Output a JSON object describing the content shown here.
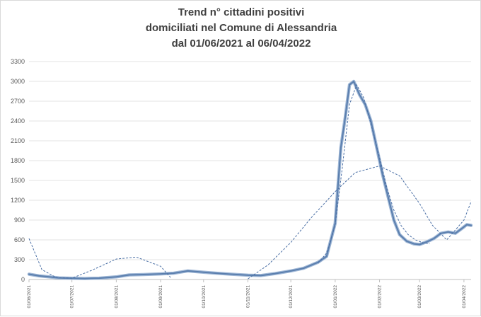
{
  "chart_data": {
    "type": "line",
    "title_lines": [
      "Trend n° cittadini positivi",
      "domiciliati nel Comune di Alessandria",
      "dal 01/06/2021 al 06/04/2022"
    ],
    "xlabel": "",
    "ylabel": "",
    "x_start": "2021-06-01",
    "x_end": "2022-04-06",
    "x_ticks": [
      "01/06/2021",
      "01/07/2021",
      "01/08/2021",
      "01/09/2021",
      "01/10/2021",
      "01/11/2021",
      "01/12/2021",
      "01/01/2022",
      "01/02/2022",
      "01/03/2022",
      "01/04/2022"
    ],
    "ylim": [
      0,
      3300
    ],
    "y_ticks": [
      0,
      300,
      600,
      900,
      1200,
      1500,
      1800,
      2100,
      2400,
      2700,
      3000,
      3300
    ],
    "grid": "horizontal",
    "legend": "none",
    "colors": {
      "series": "#5b7fae",
      "trend": "#4a6fa5",
      "grid": "#e3e3e3",
      "axis_text": "#595959"
    },
    "series": [
      {
        "style": "solid",
        "x": [
          "2021-06-01",
          "2021-06-08",
          "2021-06-15",
          "2021-06-22",
          "2021-07-01",
          "2021-07-10",
          "2021-07-20",
          "2021-08-01",
          "2021-08-10",
          "2021-08-20",
          "2021-09-01",
          "2021-09-10",
          "2021-09-20",
          "2021-10-01",
          "2021-10-10",
          "2021-10-20",
          "2021-11-01",
          "2021-11-10",
          "2021-11-20",
          "2021-12-01",
          "2021-12-10",
          "2021-12-20",
          "2021-12-26",
          "2022-01-01",
          "2022-01-05",
          "2022-01-08",
          "2022-01-11",
          "2022-01-14",
          "2022-01-18",
          "2022-01-22",
          "2022-01-26",
          "2022-01-30",
          "2022-02-03",
          "2022-02-07",
          "2022-02-11",
          "2022-02-15",
          "2022-02-20",
          "2022-02-25",
          "2022-03-01",
          "2022-03-06",
          "2022-03-11",
          "2022-03-16",
          "2022-03-21",
          "2022-03-26",
          "2022-03-31",
          "2022-04-03",
          "2022-04-06"
        ],
        "y": [
          80,
          55,
          40,
          25,
          18,
          15,
          20,
          40,
          70,
          75,
          85,
          95,
          130,
          110,
          95,
          80,
          65,
          60,
          90,
          130,
          170,
          260,
          350,
          850,
          2000,
          2450,
          2950,
          3000,
          2800,
          2650,
          2400,
          2000,
          1600,
          1250,
          900,
          680,
          580,
          540,
          530,
          570,
          620,
          700,
          720,
          700,
          780,
          830,
          820
        ]
      },
      {
        "style": "dashed",
        "x": [
          "2021-06-01",
          "2021-06-10",
          "2021-06-20",
          "2021-07-01",
          "2021-07-15",
          "2021-08-01",
          "2021-08-15",
          "2021-09-01",
          "2021-09-08"
        ],
        "y": [
          620,
          150,
          30,
          20,
          140,
          310,
          340,
          200,
          30
        ]
      },
      {
        "style": "dashed",
        "x": [
          "2021-11-01",
          "2021-11-15",
          "2021-12-01",
          "2021-12-15",
          "2022-01-01",
          "2022-01-15",
          "2022-02-01",
          "2022-02-15",
          "2022-03-01",
          "2022-03-10",
          "2022-03-20",
          "2022-04-01",
          "2022-04-06"
        ],
        "y": [
          10,
          220,
          560,
          930,
          1330,
          1620,
          1720,
          1570,
          1150,
          820,
          600,
          900,
          1180
        ]
      },
      {
        "style": "dashed",
        "x": [
          "2021-12-20",
          "2021-12-26",
          "2022-01-01",
          "2022-01-06",
          "2022-01-11",
          "2022-01-16",
          "2022-01-21",
          "2022-01-26",
          "2022-02-01",
          "2022-02-06",
          "2022-02-11",
          "2022-02-16",
          "2022-02-21",
          "2022-02-26",
          "2022-03-03",
          "2022-03-08"
        ],
        "y": [
          250,
          400,
          820,
          1700,
          2650,
          2950,
          2750,
          2350,
          1850,
          1400,
          1050,
          820,
          680,
          600,
          560,
          540
        ]
      }
    ]
  }
}
